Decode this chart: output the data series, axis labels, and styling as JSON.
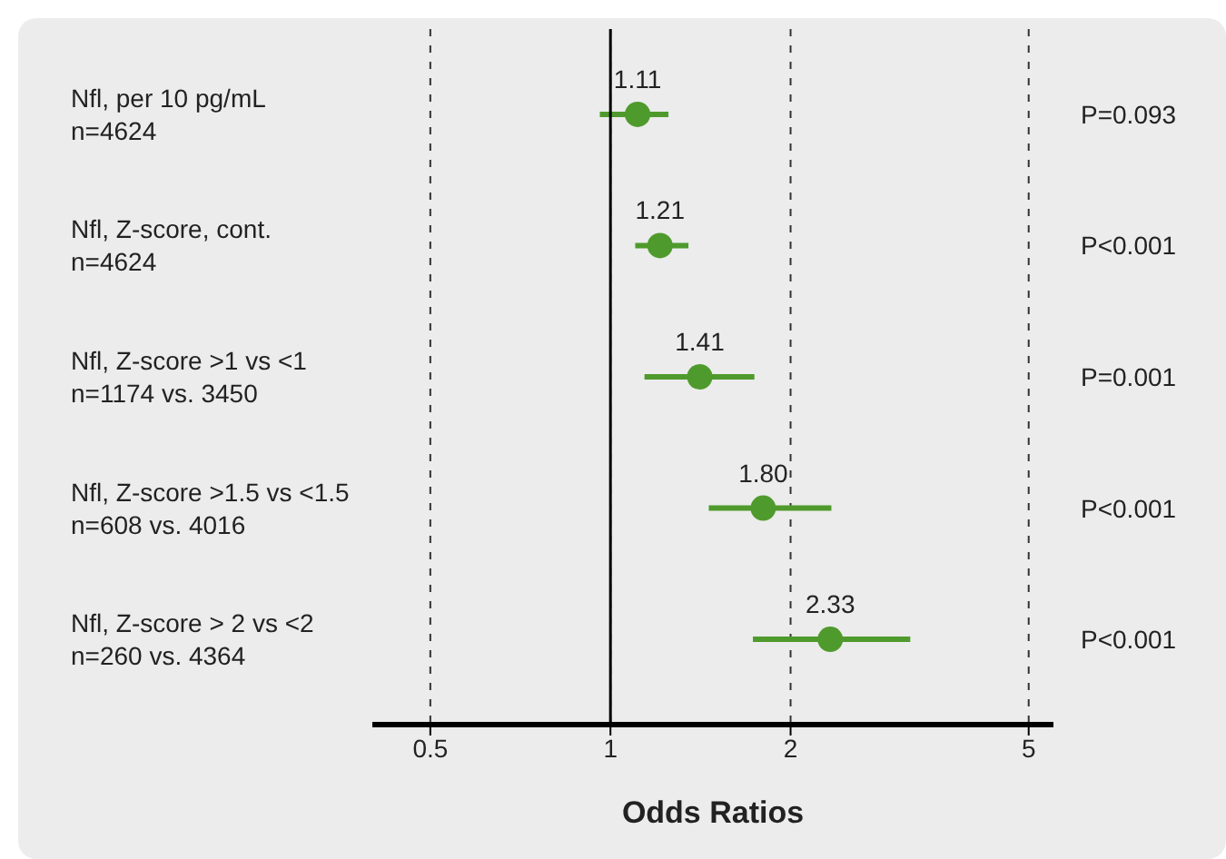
{
  "chart_data": {
    "type": "scatter",
    "orientation": "horizontal",
    "categories": [
      "Nfl, per 10 pg/mL\nn=4624",
      "Nfl, Z-score, cont.\nn=4624",
      "Nfl, Z-score >1 vs <1\nn=1174 vs. 3450",
      "Nfl, Z-score >1.5 vs <1.5\nn=608 vs. 4016",
      "Nfl, Z-score > 2 vs <2\nn=260 vs. 4364"
    ],
    "values": [
      1.11,
      1.21,
      1.41,
      1.8,
      2.33
    ],
    "errors": [
      [
        0.96,
        1.25
      ],
      [
        1.1,
        1.35
      ],
      [
        1.14,
        1.74
      ],
      [
        1.46,
        2.34
      ],
      [
        1.73,
        3.17
      ]
    ],
    "value_labels": [
      "1.11",
      "1.21",
      "1.41",
      "1.80",
      "2.33"
    ],
    "color": "#4f9a2c",
    "marker": "circle",
    "xlabel": "Odds Ratios",
    "log": "x",
    "xlim": [
      0.4,
      5.5
    ],
    "xticks": [
      0.5,
      1,
      2,
      5
    ],
    "grid": true,
    "ref_lines": [
      {
        "axis": "x",
        "value": 1,
        "color": "#000000",
        "line_style": "solid"
      }
    ],
    "annotations": [
      "P=0.093",
      "P<0.001",
      "P=0.001",
      "P<0.001",
      "P<0.001"
    ]
  }
}
